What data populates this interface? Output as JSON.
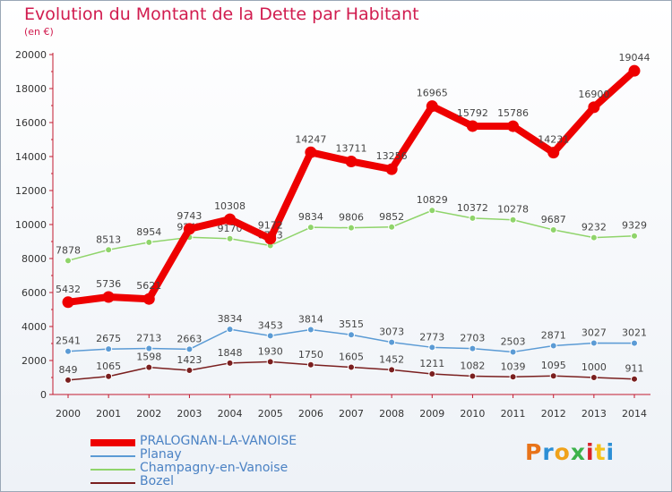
{
  "chart_data": {
    "type": "line",
    "title": "Evolution du Montant de la Dette par Habitant",
    "subtitle": "(en €)",
    "x": [
      2000,
      2001,
      2002,
      2003,
      2004,
      2005,
      2006,
      2007,
      2008,
      2009,
      2010,
      2011,
      2012,
      2013,
      2014
    ],
    "ylim": [
      0,
      20000
    ],
    "yticks": [
      0,
      2000,
      4000,
      6000,
      8000,
      10000,
      12000,
      14000,
      16000,
      18000,
      20000
    ],
    "grid": false,
    "legend_position": "bottom",
    "series": [
      {
        "name": "PRALOGNAN-LA-VANOISE",
        "color": "#ee0000",
        "values": [
          5432,
          5736,
          5621,
          9743,
          10308,
          9172,
          14247,
          13711,
          13256,
          16965,
          15792,
          15786,
          14231,
          16900,
          19044
        ]
      },
      {
        "name": "Planay",
        "color": "#5b9bd5",
        "values": [
          2541,
          2675,
          2713,
          2663,
          3834,
          3453,
          3814,
          3515,
          3073,
          2773,
          2703,
          2503,
          2871,
          3027,
          3021
        ]
      },
      {
        "name": "Champagny-en-Vanoise",
        "color": "#8fd46a",
        "values": [
          7878,
          8513,
          8954,
          9247,
          9170,
          8763,
          9834,
          9806,
          9852,
          10829,
          10372,
          10278,
          9687,
          9232,
          9329
        ]
      },
      {
        "name": "Bozel",
        "color": "#7a1f1f",
        "values": [
          849,
          1065,
          1598,
          1423,
          1848,
          1930,
          1750,
          1605,
          1452,
          1211,
          1082,
          1039,
          1095,
          1000,
          911
        ]
      }
    ]
  },
  "logo": {
    "text": "Proxiti",
    "colors": [
      "#e8731a",
      "#2c8fd6",
      "#f0a21a",
      "#3cb24b",
      "#d8232a",
      "#f4c21c",
      "#2c8fd6"
    ]
  }
}
